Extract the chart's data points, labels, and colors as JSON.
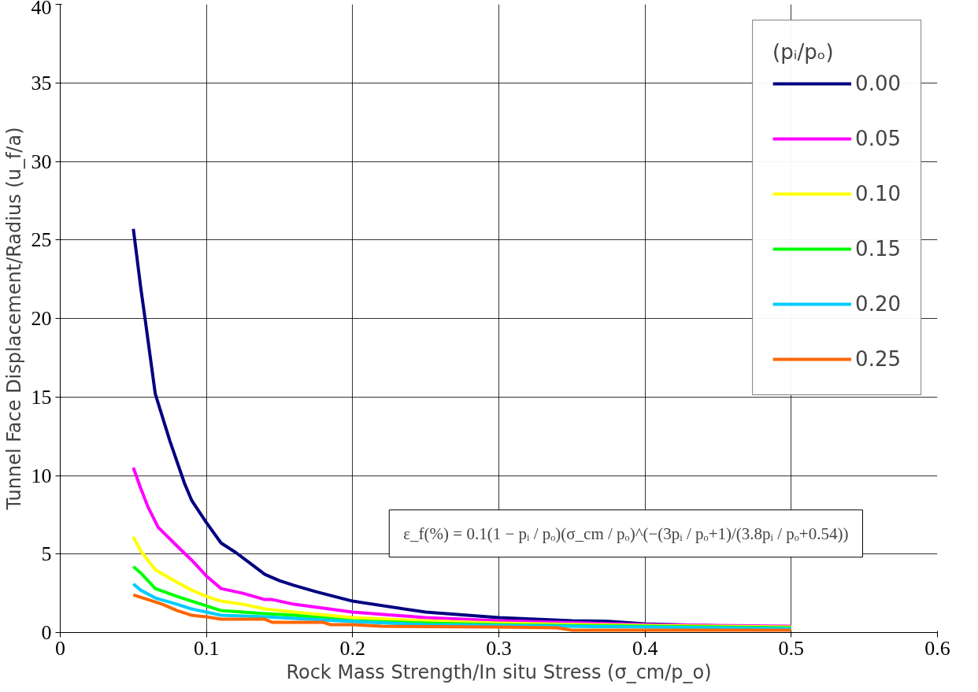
{
  "chart_data": {
    "type": "line",
    "xlabel": "Rock Mass Strength/In situ Stress (σ_cm/p_o)",
    "ylabel": "Tunnel Face Displacement/Radius (u_f/a)",
    "legend_title": "(pᵢ/pₒ)",
    "legend": "top right",
    "grid": true,
    "line_style": "solid",
    "marker": "none",
    "xlim": [
      0,
      0.6
    ],
    "ylim": [
      0,
      40
    ],
    "xticks": [
      0,
      0.1,
      0.2,
      0.3,
      0.4,
      0.5,
      0.6
    ],
    "yticks": [
      0,
      5,
      10,
      15,
      20,
      25,
      30,
      35,
      40
    ],
    "annotations": [
      "ε_f(%) = 0.1(1 − pᵢ / pₒ)(σ_cm / pₒ)^(−(3pᵢ / pₒ+1)/(3.8pᵢ / pₒ+0.54))"
    ],
    "series": [
      {
        "name": "0.00",
        "color": "#000080",
        "x": [
          0.05,
          0.055,
          0.058,
          0.065,
          0.075,
          0.085,
          0.09,
          0.1,
          0.11,
          0.12,
          0.13,
          0.14,
          0.15,
          0.16,
          0.175,
          0.2,
          0.25,
          0.3,
          0.35,
          0.375,
          0.4,
          0.5
        ],
        "values": [
          25.7,
          22,
          20,
          15.2,
          12.2,
          9.5,
          8.4,
          7.0,
          5.7,
          5.1,
          4.4,
          3.7,
          3.3,
          3.0,
          2.6,
          2.0,
          1.3,
          0.95,
          0.75,
          0.72,
          0.55,
          0.3
        ]
      },
      {
        "name": "0.05",
        "color": "#ff00ff",
        "x": [
          0.05,
          0.055,
          0.06,
          0.067,
          0.08,
          0.09,
          0.1,
          0.11,
          0.125,
          0.14,
          0.145,
          0.16,
          0.2,
          0.25,
          0.3,
          0.4,
          0.5
        ],
        "values": [
          10.5,
          9.2,
          8,
          6.7,
          5.5,
          4.6,
          3.6,
          2.8,
          2.5,
          2.1,
          2.1,
          1.8,
          1.3,
          0.95,
          0.75,
          0.5,
          0.4
        ]
      },
      {
        "name": "0.10",
        "color": "#ffff00",
        "x": [
          0.05,
          0.055,
          0.065,
          0.08,
          0.09,
          0.1,
          0.11,
          0.125,
          0.14,
          0.16,
          0.2,
          0.25,
          0.3,
          0.4,
          0.5
        ],
        "values": [
          6.1,
          5.2,
          4.0,
          3.2,
          2.7,
          2.3,
          2.0,
          1.8,
          1.5,
          1.3,
          0.95,
          0.75,
          0.6,
          0.45,
          0.35
        ]
      },
      {
        "name": "0.15",
        "color": "#00ff00",
        "x": [
          0.05,
          0.055,
          0.065,
          0.08,
          0.09,
          0.1,
          0.11,
          0.125,
          0.14,
          0.16,
          0.2,
          0.25,
          0.3,
          0.4,
          0.5
        ],
        "values": [
          4.2,
          3.8,
          2.8,
          2.3,
          2.0,
          1.7,
          1.4,
          1.3,
          1.2,
          1.1,
          0.75,
          0.6,
          0.5,
          0.4,
          0.3
        ]
      },
      {
        "name": "0.20",
        "color": "#00ccff",
        "x": [
          0.05,
          0.055,
          0.065,
          0.08,
          0.09,
          0.1,
          0.11,
          0.14,
          0.16,
          0.2,
          0.25,
          0.3,
          0.4,
          0.5
        ],
        "values": [
          3.1,
          2.7,
          2.2,
          1.8,
          1.5,
          1.3,
          1.1,
          1.0,
          0.9,
          0.7,
          0.5,
          0.45,
          0.35,
          0.25
        ]
      },
      {
        "name": "0.25",
        "color": "#ff6600",
        "x": [
          0.05,
          0.06,
          0.07,
          0.08,
          0.09,
          0.1,
          0.11,
          0.14,
          0.145,
          0.18,
          0.185,
          0.2,
          0.22,
          0.3,
          0.34,
          0.35,
          0.4,
          0.5
        ],
        "values": [
          2.4,
          2.1,
          1.8,
          1.4,
          1.1,
          1.0,
          0.85,
          0.85,
          0.65,
          0.65,
          0.5,
          0.5,
          0.4,
          0.35,
          0.3,
          0.15,
          0.15,
          0.15
        ]
      }
    ]
  }
}
